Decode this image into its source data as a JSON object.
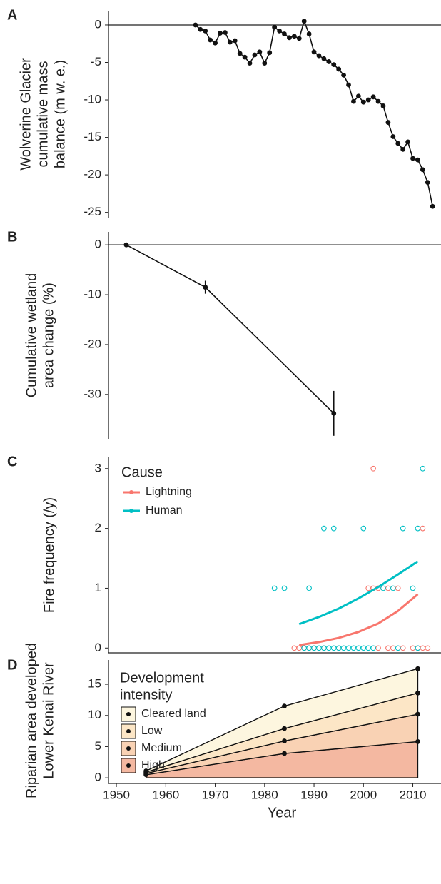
{
  "chart_data": [
    {
      "type": "line",
      "panel": "A",
      "ylabel": [
        "Wolverine Glacier",
        "cumulative mass",
        "balance (m w. e.)"
      ],
      "x": [
        1966,
        1967,
        1968,
        1969,
        1970,
        1971,
        1972,
        1973,
        1974,
        1975,
        1976,
        1977,
        1978,
        1979,
        1980,
        1981,
        1982,
        1983,
        1984,
        1985,
        1986,
        1987,
        1988,
        1989,
        1990,
        1991,
        1992,
        1993,
        1994,
        1995,
        1996,
        1997,
        1998,
        1999,
        2000,
        2001,
        2002,
        2003,
        2004,
        2005,
        2006,
        2007,
        2008,
        2009,
        2010,
        2011,
        2012,
        2013,
        2014
      ],
      "values": [
        0,
        -0.6,
        -0.8,
        -2.0,
        -2.4,
        -1.1,
        -1.0,
        -2.3,
        -2.1,
        -3.8,
        -4.3,
        -5.1,
        -4.0,
        -3.6,
        -5.1,
        -3.7,
        -0.3,
        -0.8,
        -1.2,
        -1.7,
        -1.5,
        -1.8,
        0.5,
        -1.2,
        -3.6,
        -4.1,
        -4.5,
        -4.9,
        -5.3,
        -5.9,
        -6.7,
        -8.0,
        -10.2,
        -9.5,
        -10.3,
        -10.0,
        -9.6,
        -10.2,
        -10.8,
        -13.0,
        -14.9,
        -15.8,
        -16.6,
        -15.6,
        -17.8,
        -18.0,
        -19.3,
        -21.0,
        -24.2
      ],
      "color": "#111111",
      "hline": 0,
      "xlim": [
        1948.4,
        2015.7
      ],
      "ylim": [
        -25.7,
        1.9
      ],
      "yticks": [
        0,
        -5,
        -10,
        -15,
        -20,
        -25
      ]
    },
    {
      "type": "line",
      "panel": "B",
      "ylabel": [
        "Cumulative wetland",
        "area change (%)"
      ],
      "x": [
        1952,
        1968,
        1994
      ],
      "values": [
        0,
        -8.5,
        -33.8
      ],
      "errors": [
        0,
        1.3,
        4.5
      ],
      "color": "#111111",
      "hline": 0,
      "xlim": [
        1948.4,
        2015.7
      ],
      "ylim": [
        -38.9,
        2.6
      ],
      "yticks": [
        0,
        -10,
        -20,
        -30
      ]
    },
    {
      "type": "scatter",
      "panel": "C",
      "ylabel": [
        "Fire frequency (/y)"
      ],
      "legend_title": "Cause",
      "series": [
        {
          "name": "Lightning",
          "color": "#f8766d",
          "x": [
            2002,
            2012,
            2001,
            2002,
            2003,
            2005,
            2007,
            1986,
            1987,
            1988,
            1989,
            1990,
            1992,
            1995,
            2003,
            2005,
            2006,
            2008,
            2010,
            2011,
            2012,
            2013
          ],
          "values": [
            3,
            2,
            1,
            1,
            1,
            1,
            1,
            0,
            0,
            0,
            0,
            0,
            0,
            0,
            0,
            0,
            0,
            0,
            0,
            0,
            0,
            0
          ],
          "fit_x": [
            1987,
            1991,
            1995,
            1999,
            2003,
            2007,
            2011
          ],
          "fit": [
            0.05,
            0.1,
            0.17,
            0.27,
            0.41,
            0.62,
            0.9
          ]
        },
        {
          "name": "Human",
          "color": "#00bfc4",
          "x": [
            2012,
            1992,
            1994,
            2000,
            2008,
            2011,
            1982,
            1984,
            1989,
            2004,
            2006,
            2010,
            1988,
            1989,
            1990,
            1991,
            1992,
            1993,
            1994,
            1995,
            1996,
            1997,
            1998,
            1999,
            2000,
            2001,
            2002,
            2007,
            2011
          ],
          "values": [
            3,
            2,
            2,
            2,
            2,
            2,
            1,
            1,
            1,
            1,
            1,
            1,
            0,
            0,
            0,
            0,
            0,
            0,
            0,
            0,
            0,
            0,
            0,
            0,
            0,
            0,
            0,
            0,
            0
          ],
          "fit_x": [
            1987,
            1991,
            1995,
            1999,
            2003,
            2007,
            2011
          ],
          "fit": [
            0.4,
            0.52,
            0.66,
            0.83,
            1.02,
            1.23,
            1.45
          ]
        }
      ],
      "xlim": [
        1948.4,
        2015.7
      ],
      "ylim": [
        -0.08,
        3.2
      ],
      "yticks": [
        0,
        1,
        2,
        3
      ]
    },
    {
      "type": "area",
      "panel": "D",
      "ylabel": [
        "Riparian area developed",
        "Lower Kenai River"
      ],
      "xlabel": "Year",
      "legend_title": [
        "Development",
        "intensity"
      ],
      "x": [
        1956,
        1984,
        2011
      ],
      "series": [
        {
          "name": "High",
          "color": "#f4b8a1",
          "values": [
            0.5,
            3.9,
            5.8
          ]
        },
        {
          "name": "Medium",
          "color": "#f9d2b4",
          "values": [
            0.2,
            2.0,
            4.4
          ]
        },
        {
          "name": "Low",
          "color": "#fce6c6",
          "values": [
            0.2,
            2.0,
            3.4
          ]
        },
        {
          "name": "Cleared land",
          "color": "#fdf6df",
          "values": [
            0.2,
            3.6,
            3.9
          ]
        }
      ],
      "xlim": [
        1948.4,
        2015.7
      ],
      "ylim": [
        -0.9,
        18.9
      ],
      "yticks": [
        0,
        5,
        10,
        15
      ],
      "xticks": [
        1950,
        1960,
        1970,
        1980,
        1990,
        2000,
        2010
      ]
    }
  ]
}
